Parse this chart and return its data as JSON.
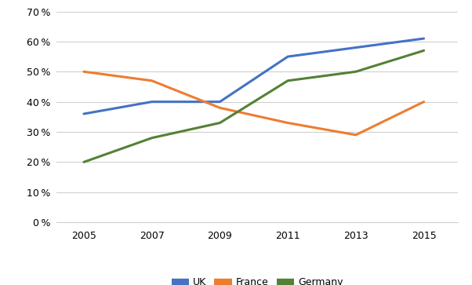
{
  "years": [
    2005,
    2007,
    2009,
    2011,
    2013,
    2015
  ],
  "UK": [
    0.36,
    0.4,
    0.4,
    0.55,
    0.58,
    0.61
  ],
  "France": [
    0.5,
    0.47,
    0.38,
    0.33,
    0.29,
    0.4
  ],
  "Germany": [
    0.2,
    0.28,
    0.33,
    0.47,
    0.5,
    0.57
  ],
  "colors": {
    "UK": "#4472C4",
    "France": "#ED7D31",
    "Germany": "#538135"
  },
  "ylim": [
    0,
    0.7
  ],
  "yticks": [
    0.0,
    0.1,
    0.2,
    0.3,
    0.4,
    0.5,
    0.6,
    0.7
  ],
  "xticks": [
    2005,
    2007,
    2009,
    2011,
    2013,
    2015
  ],
  "grid_color": "#D0D0D0",
  "background_color": "#FFFFFF",
  "line_width": 2.2,
  "legend_entries": [
    "UK",
    "France",
    "Germany"
  ]
}
